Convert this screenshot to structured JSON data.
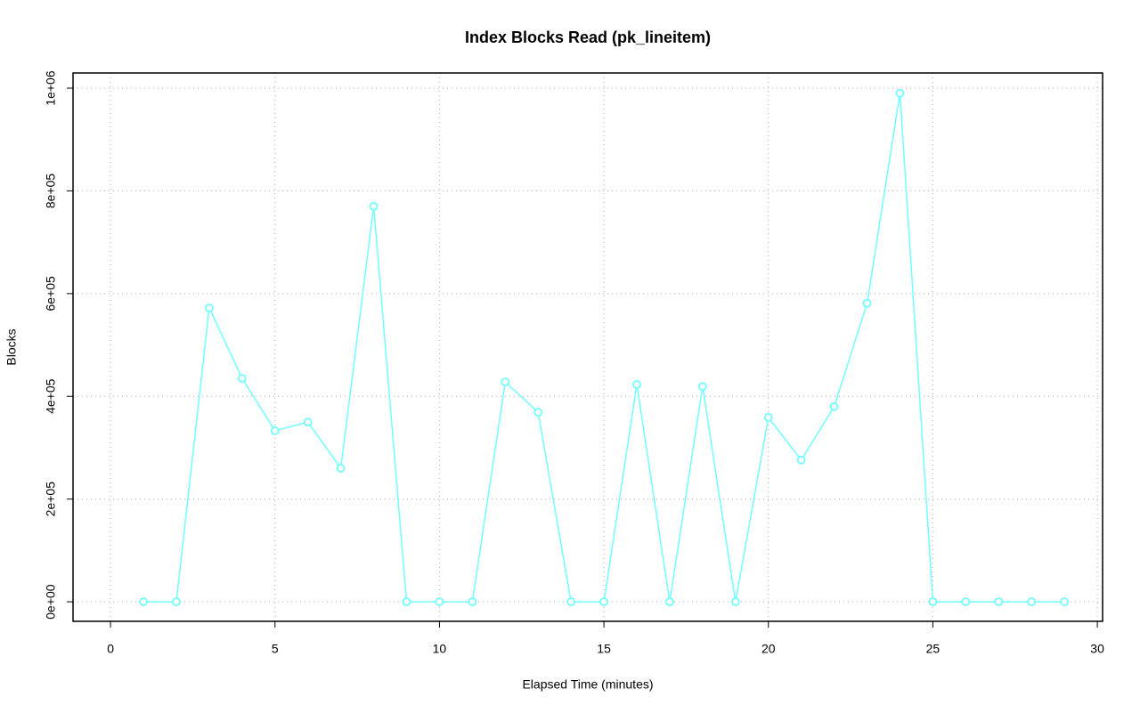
{
  "chart_data": {
    "type": "line",
    "title": "Index Blocks Read (pk_lineitem)",
    "x_label": "Elapsed Time (minutes)",
    "y_label": "Blocks",
    "x": [
      1,
      2,
      3,
      4,
      5,
      6,
      7,
      8,
      9,
      10,
      11,
      12,
      13,
      14,
      15,
      16,
      17,
      18,
      19,
      20,
      21,
      22,
      23,
      24,
      25,
      26,
      27,
      28,
      29
    ],
    "series": [
      {
        "name": "pk_lineitem",
        "color": "#70ffff",
        "values": [
          0,
          0,
          572000,
          435000,
          333000,
          350000,
          260000,
          770000,
          0,
          0,
          0,
          428000,
          369000,
          0,
          0,
          423000,
          0,
          419000,
          0,
          359000,
          276000,
          380000,
          581000,
          990000,
          0,
          0,
          0,
          0,
          0
        ]
      }
    ],
    "xlim": [
      -1.14,
      30.16
    ],
    "ylim": [
      -38000,
      1029500
    ],
    "xticks": [
      0,
      5,
      10,
      15,
      20,
      25,
      30
    ],
    "yticks": [
      {
        "value": 0,
        "label": "0e+00"
      },
      {
        "value": 200000,
        "label": "2e+05"
      },
      {
        "value": 400000,
        "label": "4e+05"
      },
      {
        "value": 600000,
        "label": "6e+05"
      },
      {
        "value": 800000,
        "label": "8e+05"
      },
      {
        "value": 1000000,
        "label": "1e+06"
      }
    ],
    "grid": true
  }
}
